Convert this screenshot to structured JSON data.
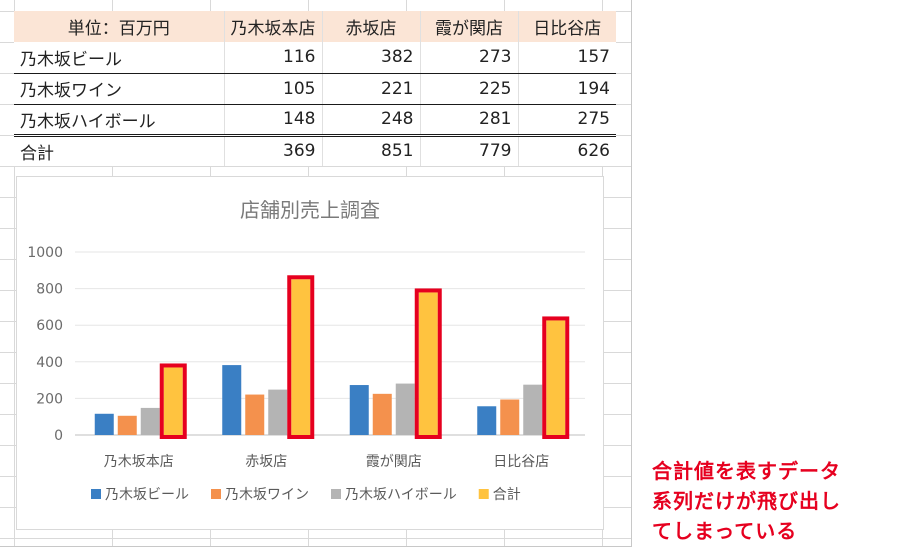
{
  "table": {
    "header": [
      "単位：百万円",
      "乃木坂本店",
      "赤坂店",
      "霞が関店",
      "日比谷店"
    ],
    "rows": [
      {
        "label": "乃木坂ビール",
        "values": [
          "116",
          "382",
          "273",
          "157"
        ]
      },
      {
        "label": "乃木坂ワイン",
        "values": [
          "105",
          "221",
          "225",
          "194"
        ]
      },
      {
        "label": "乃木坂ハイボール",
        "values": [
          "148",
          "248",
          "281",
          "275"
        ]
      },
      {
        "label": "合計",
        "values": [
          "369",
          "851",
          "779",
          "626"
        ]
      }
    ]
  },
  "chart_data": {
    "type": "bar",
    "title": "店舗別売上調査",
    "categories": [
      "乃木坂本店",
      "赤坂店",
      "霞が関店",
      "日比谷店"
    ],
    "series": [
      {
        "name": "乃木坂ビール",
        "values": [
          116,
          382,
          273,
          157
        ],
        "color": "#3a7fc4"
      },
      {
        "name": "乃木坂ワイン",
        "values": [
          105,
          221,
          225,
          194
        ],
        "color": "#f4914d"
      },
      {
        "name": "乃木坂ハイボール",
        "values": [
          148,
          248,
          281,
          275
        ],
        "color": "#b4b4b4"
      },
      {
        "name": "合計",
        "values": [
          369,
          851,
          779,
          626
        ],
        "color": "#ffc33f"
      }
    ],
    "ylim": [
      0,
      1000
    ],
    "yticks": [
      "0",
      "200",
      "400",
      "600",
      "800",
      "1000"
    ],
    "ytick_values": [
      0,
      200,
      400,
      600,
      800,
      1000
    ],
    "grid": true,
    "legend": "bottom",
    "highlight_series": "合計",
    "highlight_color": "#e6001f"
  },
  "note": {
    "lines": [
      "合計値を表すデータ",
      "系列だけが飛び出し",
      "てしまっている"
    ],
    "color": "#e6001f"
  }
}
